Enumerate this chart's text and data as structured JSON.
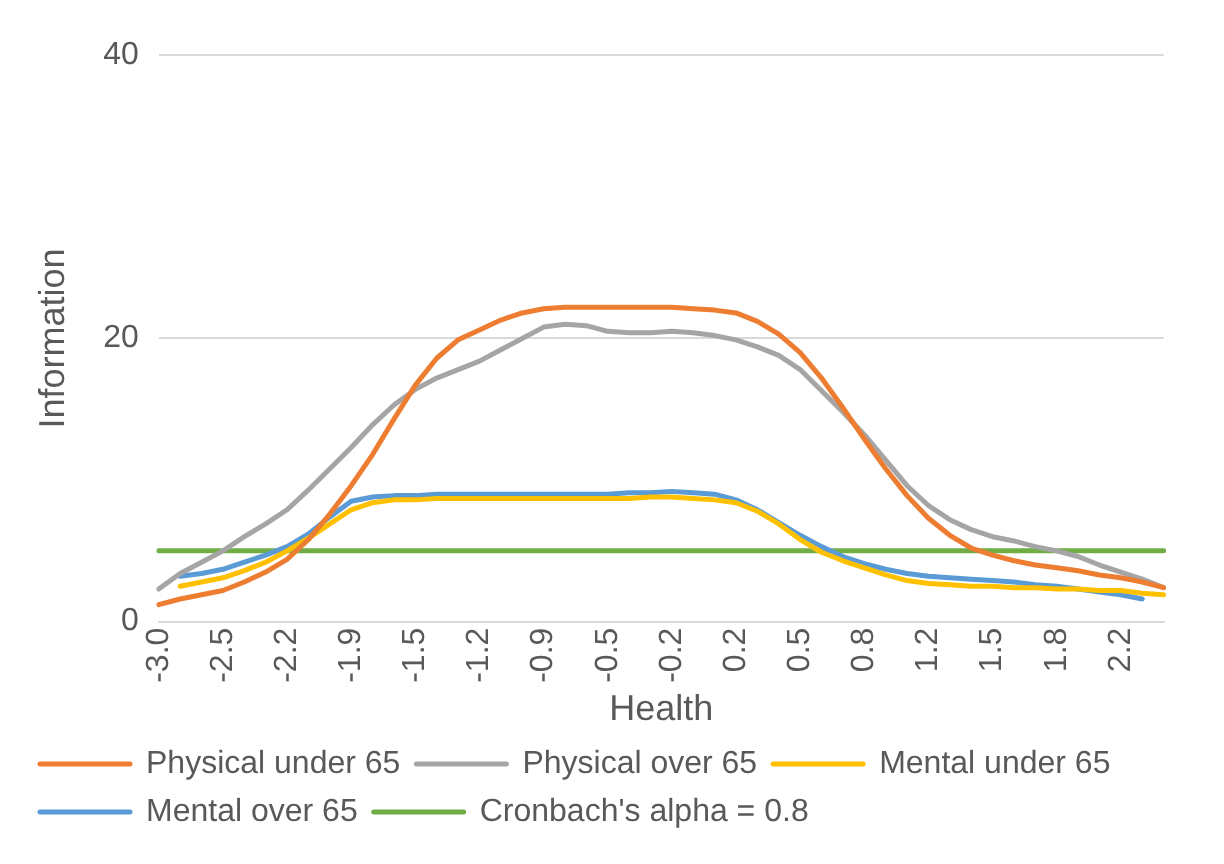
{
  "chart_data": {
    "type": "line",
    "xlabel": "Health",
    "ylabel": "Information",
    "categories": [
      "-3.0",
      null,
      null,
      "-2.5",
      null,
      null,
      "-2.2",
      null,
      null,
      "-1.9",
      null,
      null,
      "-1.5",
      null,
      null,
      "-1.2",
      null,
      null,
      "-0.9",
      null,
      null,
      "-0.5",
      null,
      null,
      "-0.2",
      null,
      null,
      "0.2",
      null,
      null,
      "0.5",
      null,
      null,
      "0.8",
      null,
      null,
      "1.2",
      null,
      null,
      "1.5",
      null,
      null,
      "1.8",
      null,
      null,
      "2.2",
      null,
      null
    ],
    "series": [
      {
        "name": "Physical under 65",
        "color": "#ed7d31",
        "values": [
          1.2,
          1.6,
          1.9,
          2.2,
          2.8,
          3.5,
          4.4,
          5.8,
          7.6,
          9.6,
          11.8,
          14.3,
          16.7,
          18.6,
          19.9,
          20.6,
          21.3,
          21.8,
          22.1,
          22.2,
          22.2,
          22.2,
          22.2,
          22.2,
          22.2,
          22.1,
          22.0,
          21.8,
          21.2,
          20.3,
          19.0,
          17.2,
          15.1,
          12.9,
          10.8,
          8.9,
          7.3,
          6.1,
          5.2,
          4.7,
          4.3,
          4.0,
          3.8,
          3.6,
          3.3,
          3.1,
          2.8,
          2.4
        ]
      },
      {
        "name": "Physical over 65",
        "color": "#a5a5a5",
        "values": [
          2.3,
          3.4,
          4.2,
          5.0,
          6.0,
          6.9,
          7.9,
          9.3,
          10.8,
          12.3,
          13.9,
          15.3,
          16.4,
          17.2,
          17.8,
          18.4,
          19.2,
          20.0,
          20.8,
          21.0,
          20.9,
          20.5,
          20.4,
          20.4,
          20.5,
          20.4,
          20.2,
          19.9,
          19.4,
          18.8,
          17.8,
          16.3,
          14.8,
          13.2,
          11.4,
          9.6,
          8.2,
          7.2,
          6.5,
          6.0,
          5.7,
          5.3,
          5.0,
          4.6,
          4.0,
          3.5,
          3.0,
          2.4
        ]
      },
      {
        "name": "Mental under 65",
        "color": "#ffc000",
        "values": [
          null,
          2.5,
          2.8,
          3.1,
          3.6,
          4.2,
          5.0,
          5.9,
          6.9,
          7.9,
          8.4,
          8.6,
          8.6,
          8.7,
          8.7,
          8.7,
          8.7,
          8.7,
          8.7,
          8.7,
          8.7,
          8.7,
          8.7,
          8.8,
          8.8,
          8.7,
          8.6,
          8.4,
          7.8,
          6.9,
          5.8,
          4.9,
          4.3,
          3.8,
          3.3,
          2.9,
          2.7,
          2.6,
          2.5,
          2.5,
          2.4,
          2.4,
          2.3,
          2.3,
          2.2,
          2.2,
          2.0,
          1.9
        ]
      },
      {
        "name": "Mental over 65",
        "color": "#5b9bd5",
        "values": [
          null,
          3.2,
          3.4,
          3.7,
          4.2,
          4.7,
          5.3,
          6.2,
          7.4,
          8.5,
          8.8,
          8.9,
          8.9,
          9.0,
          9.0,
          9.0,
          9.0,
          9.0,
          9.0,
          9.0,
          9.0,
          9.0,
          9.1,
          9.1,
          9.2,
          9.1,
          9.0,
          8.6,
          7.9,
          7.0,
          6.1,
          5.3,
          4.6,
          4.1,
          3.7,
          3.4,
          3.2,
          3.1,
          3.0,
          2.9,
          2.8,
          2.6,
          2.5,
          2.3,
          2.1,
          1.9,
          1.6,
          null
        ]
      },
      {
        "name": "Cronbach's alpha = 0.8",
        "color": "#70ad47",
        "values": [
          5,
          5,
          5,
          5,
          5,
          5,
          5,
          5,
          5,
          5,
          5,
          5,
          5,
          5,
          5,
          5,
          5,
          5,
          5,
          5,
          5,
          5,
          5,
          5,
          5,
          5,
          5,
          5,
          5,
          5,
          5,
          5,
          5,
          5,
          5,
          5,
          5,
          5,
          5,
          5,
          5,
          5,
          5,
          5,
          5,
          5,
          5,
          5
        ]
      }
    ],
    "ylim": [
      0,
      40
    ],
    "yticks": [
      0,
      20,
      40
    ],
    "grid": "y",
    "legend": "bottom",
    "marker": "none",
    "line_style": "solid"
  }
}
